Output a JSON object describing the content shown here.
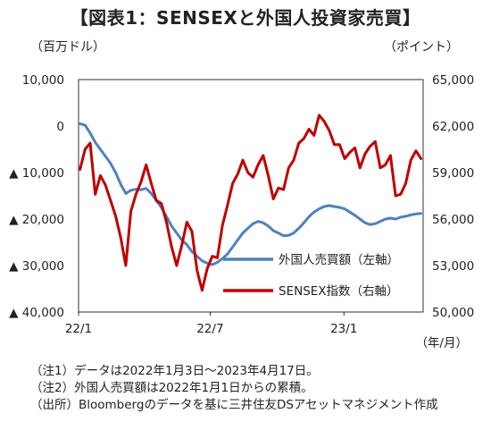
{
  "chart_data": {
    "type": "line",
    "title": "【図表1：SENSEXと外国人投資家売買】",
    "left_unit": "（百万ドル）",
    "right_unit": "（ポイント）",
    "x_unit": "（年/月）",
    "x_ticks": [
      "22/1",
      "22/7",
      "23/1"
    ],
    "left_axis": {
      "min": -40000,
      "max": 10000,
      "ticks": [
        {
          "value": 10000,
          "label": "10,000"
        },
        {
          "value": 0,
          "label": "0"
        },
        {
          "value": -10000,
          "label": "▲ 10,000"
        },
        {
          "value": -20000,
          "label": "▲ 20,000"
        },
        {
          "value": -30000,
          "label": "▲ 30,000"
        },
        {
          "value": -40000,
          "label": "▲ 40,000"
        }
      ]
    },
    "right_axis": {
      "min": 50000,
      "max": 65000,
      "ticks": [
        {
          "value": 65000,
          "label": "65,000"
        },
        {
          "value": 62000,
          "label": "62,000"
        },
        {
          "value": 59000,
          "label": "59,000"
        },
        {
          "value": 56000,
          "label": "56,000"
        },
        {
          "value": 53000,
          "label": "53,000"
        },
        {
          "value": 50000,
          "label": "50,000"
        }
      ]
    },
    "legend": {
      "placement": "lower-right"
    },
    "series": [
      {
        "name": "外国人売買額（左軸）",
        "axis": "left",
        "color": "#4f81bd",
        "points": [
          [
            "2022-01-03",
            500
          ],
          [
            "2022-01-10",
            200
          ],
          [
            "2022-01-17",
            -1500
          ],
          [
            "2022-01-24",
            -3500
          ],
          [
            "2022-01-31",
            -5000
          ],
          [
            "2022-02-07",
            -6500
          ],
          [
            "2022-02-14",
            -8000
          ],
          [
            "2022-02-21",
            -10000
          ],
          [
            "2022-02-28",
            -12500
          ],
          [
            "2022-03-07",
            -14500
          ],
          [
            "2022-03-14",
            -13800
          ],
          [
            "2022-03-21",
            -13600
          ],
          [
            "2022-03-28",
            -13700
          ],
          [
            "2022-04-04",
            -13400
          ],
          [
            "2022-04-11",
            -14500
          ],
          [
            "2022-04-18",
            -16000
          ],
          [
            "2022-04-25",
            -17500
          ],
          [
            "2022-05-02",
            -19500
          ],
          [
            "2022-05-09",
            -21500
          ],
          [
            "2022-05-16",
            -23000
          ],
          [
            "2022-05-23",
            -24500
          ],
          [
            "2022-05-30",
            -25500
          ],
          [
            "2022-06-06",
            -27000
          ],
          [
            "2022-06-13",
            -28000
          ],
          [
            "2022-06-20",
            -29000
          ],
          [
            "2022-06-27",
            -29500
          ],
          [
            "2022-07-04",
            -29800
          ],
          [
            "2022-07-11",
            -29300
          ],
          [
            "2022-07-18",
            -28500
          ],
          [
            "2022-07-25",
            -27500
          ],
          [
            "2022-08-01",
            -26000
          ],
          [
            "2022-08-08",
            -24500
          ],
          [
            "2022-08-15",
            -23000
          ],
          [
            "2022-08-22",
            -22000
          ],
          [
            "2022-08-29",
            -21000
          ],
          [
            "2022-09-05",
            -20500
          ],
          [
            "2022-09-12",
            -20800
          ],
          [
            "2022-09-19",
            -21500
          ],
          [
            "2022-09-26",
            -22500
          ],
          [
            "2022-10-03",
            -23000
          ],
          [
            "2022-10-10",
            -23600
          ],
          [
            "2022-10-17",
            -23500
          ],
          [
            "2022-10-24",
            -23000
          ],
          [
            "2022-10-31",
            -22000
          ],
          [
            "2022-11-07",
            -20800
          ],
          [
            "2022-11-14",
            -19500
          ],
          [
            "2022-11-21",
            -18500
          ],
          [
            "2022-11-28",
            -17800
          ],
          [
            "2022-12-05",
            -17300
          ],
          [
            "2022-12-12",
            -17100
          ],
          [
            "2022-12-19",
            -17300
          ],
          [
            "2022-12-26",
            -17500
          ],
          [
            "2023-01-02",
            -17800
          ],
          [
            "2023-01-09",
            -18500
          ],
          [
            "2023-01-16",
            -19200
          ],
          [
            "2023-01-23",
            -20000
          ],
          [
            "2023-01-30",
            -20800
          ],
          [
            "2023-02-06",
            -21200
          ],
          [
            "2023-02-13",
            -21000
          ],
          [
            "2023-02-20",
            -20500
          ],
          [
            "2023-02-27",
            -20000
          ],
          [
            "2023-03-06",
            -19800
          ],
          [
            "2023-03-13",
            -20000
          ],
          [
            "2023-03-20",
            -19600
          ],
          [
            "2023-03-27",
            -19400
          ],
          [
            "2023-04-03",
            -19100
          ],
          [
            "2023-04-10",
            -18900
          ],
          [
            "2023-04-17",
            -18800
          ]
        ]
      },
      {
        "name": "SENSEX指数（右軸）",
        "axis": "right",
        "color": "#c00000",
        "points": [
          [
            "2022-01-03",
            59200
          ],
          [
            "2022-01-10",
            60500
          ],
          [
            "2022-01-17",
            60900
          ],
          [
            "2022-01-24",
            57600
          ],
          [
            "2022-01-31",
            58800
          ],
          [
            "2022-02-07",
            58200
          ],
          [
            "2022-02-14",
            57200
          ],
          [
            "2022-02-21",
            56200
          ],
          [
            "2022-02-28",
            54800
          ],
          [
            "2022-03-07",
            53000
          ],
          [
            "2022-03-14",
            56500
          ],
          [
            "2022-03-21",
            57600
          ],
          [
            "2022-03-28",
            58400
          ],
          [
            "2022-04-04",
            59500
          ],
          [
            "2022-04-11",
            58300
          ],
          [
            "2022-04-18",
            57200
          ],
          [
            "2022-04-25",
            57000
          ],
          [
            "2022-05-02",
            55800
          ],
          [
            "2022-05-09",
            54200
          ],
          [
            "2022-05-16",
            53000
          ],
          [
            "2022-05-23",
            54300
          ],
          [
            "2022-05-30",
            55800
          ],
          [
            "2022-06-06",
            55200
          ],
          [
            "2022-06-13",
            52700
          ],
          [
            "2022-06-20",
            51400
          ],
          [
            "2022-06-27",
            52800
          ],
          [
            "2022-07-04",
            53600
          ],
          [
            "2022-07-11",
            53500
          ],
          [
            "2022-07-18",
            55600
          ],
          [
            "2022-07-25",
            56900
          ],
          [
            "2022-08-01",
            58300
          ],
          [
            "2022-08-08",
            58900
          ],
          [
            "2022-08-15",
            59800
          ],
          [
            "2022-08-22",
            59000
          ],
          [
            "2022-08-29",
            58700
          ],
          [
            "2022-09-05",
            59500
          ],
          [
            "2022-09-12",
            60100
          ],
          [
            "2022-09-19",
            58800
          ],
          [
            "2022-09-26",
            57300
          ],
          [
            "2022-10-03",
            58000
          ],
          [
            "2022-10-10",
            57900
          ],
          [
            "2022-10-17",
            59300
          ],
          [
            "2022-10-24",
            59800
          ],
          [
            "2022-10-31",
            60900
          ],
          [
            "2022-11-07",
            61200
          ],
          [
            "2022-11-14",
            61800
          ],
          [
            "2022-11-21",
            61400
          ],
          [
            "2022-11-28",
            62700
          ],
          [
            "2022-12-05",
            62300
          ],
          [
            "2022-12-12",
            61700
          ],
          [
            "2022-12-19",
            60800
          ],
          [
            "2022-12-26",
            60800
          ],
          [
            "2023-01-02",
            59900
          ],
          [
            "2023-01-09",
            60300
          ],
          [
            "2023-01-16",
            60600
          ],
          [
            "2023-01-23",
            59300
          ],
          [
            "2023-01-30",
            60200
          ],
          [
            "2023-02-06",
            60700
          ],
          [
            "2023-02-13",
            61000
          ],
          [
            "2023-02-20",
            59300
          ],
          [
            "2023-02-27",
            59500
          ],
          [
            "2023-03-06",
            60100
          ],
          [
            "2023-03-13",
            57500
          ],
          [
            "2023-03-20",
            57600
          ],
          [
            "2023-03-27",
            58300
          ],
          [
            "2023-04-03",
            59800
          ],
          [
            "2023-04-10",
            60400
          ],
          [
            "2023-04-17",
            59900
          ]
        ]
      }
    ]
  },
  "notes": [
    "（注1）データは2022年1月3日～2023年4月17日。",
    "（注2）外国人売買額は2022年1月1日からの累積。",
    "（出所）Bloombergのデータを基に三井住友DSアセットマネジメント作成"
  ]
}
